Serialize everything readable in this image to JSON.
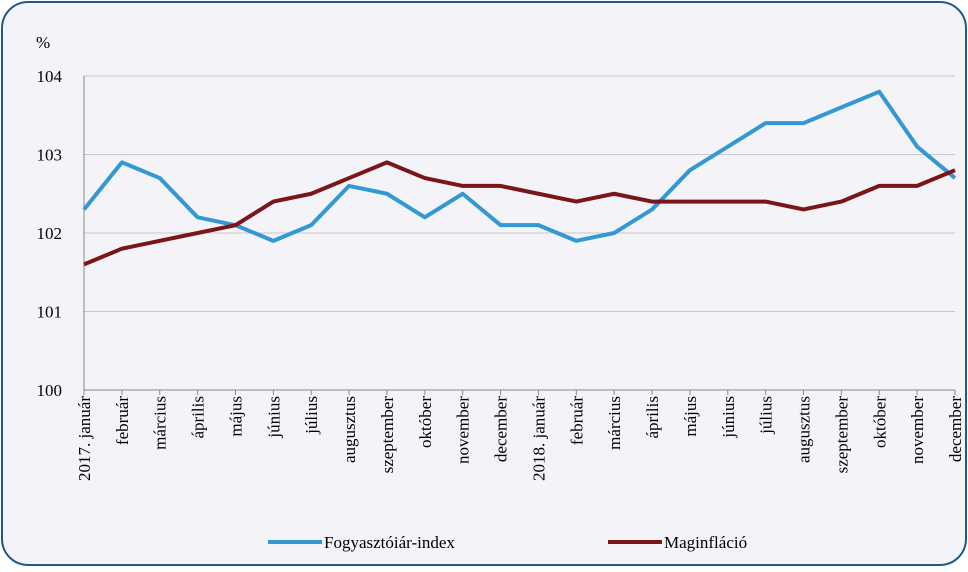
{
  "chart_data": {
    "type": "line",
    "y_label": "%",
    "categories": [
      "2017. január",
      "február",
      "március",
      "április",
      "május",
      "június",
      "július",
      "augusztus",
      "szeptember",
      "október",
      "november",
      "december",
      "2018. január",
      "február",
      "március",
      "április",
      "május",
      "június",
      "július",
      "augusztus",
      "szeptember",
      "október",
      "november",
      "december"
    ],
    "series": [
      {
        "name": "Fogyasztóiár-index",
        "color": "#3398d3",
        "values": [
          102.3,
          102.9,
          102.7,
          102.2,
          102.1,
          101.9,
          102.1,
          102.6,
          102.5,
          102.2,
          102.5,
          102.1,
          102.1,
          101.9,
          102.0,
          102.3,
          102.8,
          103.1,
          103.4,
          103.4,
          103.6,
          103.8,
          103.1,
          102.7
        ]
      },
      {
        "name": "Maginfláció",
        "color": "#7a1518",
        "values": [
          101.6,
          101.8,
          101.9,
          102.0,
          102.1,
          102.4,
          102.5,
          102.7,
          102.9,
          102.7,
          102.6,
          102.6,
          102.5,
          102.4,
          102.5,
          102.4,
          102.4,
          102.4,
          102.4,
          102.3,
          102.4,
          102.6,
          102.6,
          102.8
        ]
      }
    ],
    "ylim": [
      100,
      104
    ],
    "yticks": [
      100,
      101,
      102,
      103,
      104
    ],
    "grid": true,
    "legend": "bottom"
  }
}
